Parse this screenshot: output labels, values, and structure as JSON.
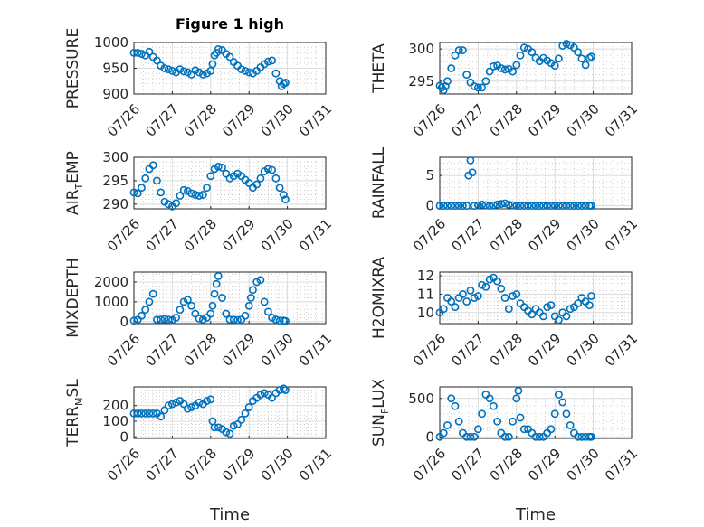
{
  "chart_data": [
    {
      "type": "scatter",
      "title": "Figure 1 high",
      "ylabel": "PRESSURE",
      "ylabel_sub": "",
      "ylim": [
        900,
        1000
      ],
      "yticks": [
        900,
        950,
        1000
      ],
      "ytick_labels": [
        "900",
        "950",
        "1000"
      ],
      "xticks": [
        0,
        1,
        2,
        3,
        4,
        5
      ],
      "xtick_labels": [
        "07/26",
        "07/27",
        "07/28",
        "07/29",
        "07/30",
        "07/31"
      ],
      "xlabel": "",
      "x": [
        0,
        0.1,
        0.2,
        0.3,
        0.4,
        0.5,
        0.6,
        0.7,
        0.8,
        0.9,
        1,
        1.1,
        1.2,
        1.3,
        1.4,
        1.5,
        1.6,
        1.7,
        1.8,
        1.9,
        2,
        2.05,
        2.1,
        2.15,
        2.2,
        2.3,
        2.4,
        2.5,
        2.6,
        2.7,
        2.8,
        2.9,
        3,
        3.1,
        3.2,
        3.3,
        3.4,
        3.5,
        3.6,
        3.7,
        3.8,
        3.85,
        3.9,
        3.95
      ],
      "y": [
        980,
        980,
        978,
        975,
        982,
        972,
        965,
        955,
        950,
        948,
        945,
        942,
        948,
        944,
        942,
        938,
        946,
        942,
        938,
        940,
        945,
        958,
        975,
        980,
        987,
        985,
        978,
        972,
        962,
        955,
        948,
        945,
        942,
        940,
        945,
        952,
        958,
        963,
        965,
        940,
        925,
        915,
        920,
        922
      ]
    },
    {
      "type": "scatter",
      "title": "",
      "ylabel": "THETA",
      "ylabel_sub": "",
      "ylim": [
        293,
        301
      ],
      "yticks": [
        295,
        300
      ],
      "ytick_labels": [
        "295",
        "300"
      ],
      "xticks": [
        0,
        1,
        2,
        3,
        4,
        5
      ],
      "xtick_labels": [
        "07/26",
        "07/27",
        "07/28",
        "07/29",
        "07/30",
        "07/31"
      ],
      "xlabel": "",
      "x": [
        0,
        0.05,
        0.1,
        0.15,
        0.2,
        0.3,
        0.4,
        0.5,
        0.6,
        0.7,
        0.8,
        0.9,
        1,
        1.1,
        1.2,
        1.3,
        1.4,
        1.5,
        1.6,
        1.7,
        1.8,
        1.9,
        2,
        2.1,
        2.2,
        2.3,
        2.4,
        2.5,
        2.6,
        2.7,
        2.8,
        2.9,
        3,
        3.1,
        3.2,
        3.3,
        3.4,
        3.5,
        3.6,
        3.7,
        3.8,
        3.9,
        3.95
      ],
      "y": [
        294.3,
        294,
        293.6,
        294.2,
        295,
        297,
        299,
        299.8,
        299.8,
        296,
        294.8,
        294.2,
        294,
        294,
        295,
        296.5,
        297.3,
        297.4,
        297,
        296.8,
        296.9,
        296.5,
        297.5,
        299,
        300.2,
        300,
        299.5,
        298.6,
        298.1,
        298.6,
        298.2,
        297.8,
        297.4,
        298.5,
        300.5,
        300.8,
        300.6,
        300.2,
        299.5,
        298.5,
        297.5,
        298.6,
        298.8
      ]
    },
    {
      "type": "scatter",
      "title": "",
      "ylabel": "AIR",
      "ylabel_sub": "T",
      "ylabel_tail": "EMP",
      "ylim": [
        289,
        300
      ],
      "yticks": [
        290,
        295,
        300
      ],
      "ytick_labels": [
        "290",
        "295",
        "300"
      ],
      "xticks": [
        0,
        1,
        2,
        3,
        4,
        5
      ],
      "xtick_labels": [
        "07/26",
        "07/27",
        "07/28",
        "07/29",
        "07/30",
        "07/31"
      ],
      "xlabel": "",
      "x": [
        0,
        0.1,
        0.2,
        0.3,
        0.4,
        0.5,
        0.6,
        0.7,
        0.8,
        0.9,
        1,
        1.1,
        1.2,
        1.3,
        1.4,
        1.5,
        1.6,
        1.7,
        1.8,
        1.9,
        2,
        2.1,
        2.2,
        2.3,
        2.4,
        2.5,
        2.6,
        2.7,
        2.8,
        2.9,
        3,
        3.1,
        3.2,
        3.3,
        3.4,
        3.5,
        3.6,
        3.7,
        3.8,
        3.9,
        3.95
      ],
      "y": [
        292.5,
        292.3,
        293.5,
        295.5,
        297.5,
        298.3,
        295,
        292.5,
        290.5,
        290,
        289.5,
        290.2,
        291.8,
        293,
        292.8,
        292.3,
        292,
        291.8,
        292,
        293.5,
        296,
        297.5,
        298,
        297.8,
        296.5,
        295.5,
        296,
        296.5,
        296,
        295.2,
        294.5,
        293.5,
        294.2,
        295.5,
        297,
        297.5,
        297.3,
        295.5,
        293.5,
        292,
        291
      ]
    },
    {
      "type": "scatter",
      "title": "",
      "ylabel": "RAINFALL",
      "ylabel_sub": "",
      "ylim": [
        -0.5,
        8
      ],
      "yticks": [
        0,
        5
      ],
      "ytick_labels": [
        "0",
        "5"
      ],
      "xticks": [
        0,
        1,
        2,
        3,
        4,
        5
      ],
      "xtick_labels": [
        "07/26",
        "07/27",
        "07/28",
        "07/29",
        "07/30",
        "07/31"
      ],
      "xlabel": "",
      "x": [
        0,
        0.1,
        0.2,
        0.3,
        0.4,
        0.5,
        0.6,
        0.7,
        0.75,
        0.8,
        0.85,
        0.9,
        1,
        1.1,
        1.2,
        1.3,
        1.4,
        1.5,
        1.6,
        1.7,
        1.8,
        1.9,
        2,
        2.1,
        2.2,
        2.3,
        2.4,
        2.5,
        2.6,
        2.7,
        2.8,
        2.9,
        3,
        3.1,
        3.2,
        3.3,
        3.4,
        3.5,
        3.6,
        3.7,
        3.8,
        3.9,
        3.95
      ],
      "y": [
        0,
        0,
        0,
        0,
        0,
        0,
        0,
        0,
        5,
        7.5,
        5.5,
        0,
        0.1,
        0.2,
        0.1,
        0,
        0.1,
        0.2,
        0.3,
        0.4,
        0.2,
        0.1,
        0,
        0,
        0,
        0,
        0,
        0,
        0,
        0,
        0,
        0,
        0,
        0,
        0,
        0,
        0,
        0,
        0,
        0,
        0,
        0,
        0
      ]
    },
    {
      "type": "scatter",
      "title": "",
      "ylabel": "MIXDEPTH",
      "ylabel_sub": "",
      "ylim": [
        -100,
        2500
      ],
      "yticks": [
        0,
        1000,
        2000
      ],
      "ytick_labels": [
        "0",
        "1000",
        "2000"
      ],
      "xticks": [
        0,
        1,
        2,
        3,
        4,
        5
      ],
      "xtick_labels": [
        "07/26",
        "07/27",
        "07/28",
        "07/29",
        "07/30",
        "07/31"
      ],
      "xlabel": "",
      "x": [
        0,
        0.1,
        0.2,
        0.3,
        0.4,
        0.5,
        0.6,
        0.7,
        0.8,
        0.9,
        1,
        1.1,
        1.2,
        1.3,
        1.4,
        1.5,
        1.6,
        1.7,
        1.8,
        1.9,
        2,
        2.05,
        2.1,
        2.15,
        2.2,
        2.3,
        2.4,
        2.5,
        2.6,
        2.7,
        2.8,
        2.9,
        3,
        3.05,
        3.1,
        3.2,
        3.3,
        3.4,
        3.5,
        3.6,
        3.7,
        3.8,
        3.9,
        3.95
      ],
      "y": [
        50,
        100,
        300,
        600,
        1000,
        1400,
        100,
        100,
        120,
        100,
        80,
        200,
        600,
        1000,
        1100,
        800,
        400,
        150,
        100,
        200,
        400,
        800,
        1400,
        1900,
        2300,
        1200,
        400,
        100,
        100,
        80,
        100,
        300,
        800,
        1200,
        1600,
        2000,
        2100,
        1000,
        500,
        200,
        100,
        50,
        50,
        30
      ]
    },
    {
      "type": "scatter",
      "title": "",
      "ylabel": "H2OMIXRA",
      "ylabel_sub": "",
      "ylim": [
        9.4,
        12.2
      ],
      "yticks": [
        10,
        11,
        12
      ],
      "ytick_labels": [
        "10",
        "11",
        "12"
      ],
      "xticks": [
        0,
        1,
        2,
        3,
        4,
        5
      ],
      "xtick_labels": [
        "07/26",
        "07/27",
        "07/28",
        "07/29",
        "07/30",
        "07/31"
      ],
      "xlabel": "",
      "x": [
        0,
        0.1,
        0.2,
        0.3,
        0.4,
        0.5,
        0.6,
        0.7,
        0.8,
        0.9,
        1,
        1.1,
        1.2,
        1.3,
        1.4,
        1.5,
        1.6,
        1.7,
        1.8,
        1.9,
        2,
        2.1,
        2.2,
        2.3,
        2.4,
        2.5,
        2.6,
        2.7,
        2.8,
        2.9,
        3,
        3.1,
        3.2,
        3.3,
        3.4,
        3.5,
        3.6,
        3.7,
        3.8,
        3.9,
        3.95
      ],
      "y": [
        10,
        10.2,
        10.8,
        10.6,
        10.3,
        10.8,
        11,
        10.6,
        11.2,
        10.8,
        10.9,
        11.5,
        11.4,
        11.8,
        11.9,
        11.7,
        11.3,
        10.8,
        10.2,
        10.9,
        11,
        10.5,
        10.3,
        10.1,
        9.9,
        10.2,
        10,
        9.8,
        10.3,
        10.4,
        9.8,
        9.6,
        10,
        9.8,
        10.2,
        10.3,
        10.5,
        10.8,
        10.6,
        10.4,
        10.9
      ]
    },
    {
      "type": "scatter",
      "title": "",
      "ylabel": "TERR",
      "ylabel_sub": "M",
      "ylabel_tail": "SL",
      "ylim": [
        -10,
        320
      ],
      "yticks": [
        0,
        100,
        200
      ],
      "ytick_labels": [
        "0",
        "100",
        "200"
      ],
      "xticks": [
        0,
        1,
        2,
        3,
        4,
        5
      ],
      "xtick_labels": [
        "07/26",
        "07/27",
        "07/28",
        "07/29",
        "07/30",
        "07/31"
      ],
      "xlabel": "Time",
      "x": [
        0,
        0.1,
        0.2,
        0.3,
        0.4,
        0.5,
        0.6,
        0.7,
        0.8,
        0.9,
        1,
        1.1,
        1.2,
        1.3,
        1.4,
        1.5,
        1.6,
        1.7,
        1.8,
        1.9,
        2,
        2.05,
        2.1,
        2.2,
        2.3,
        2.4,
        2.5,
        2.6,
        2.7,
        2.8,
        2.9,
        3,
        3.1,
        3.2,
        3.3,
        3.4,
        3.5,
        3.6,
        3.7,
        3.8,
        3.9,
        3.95
      ],
      "y": [
        150,
        150,
        150,
        150,
        150,
        150,
        150,
        130,
        170,
        200,
        210,
        220,
        230,
        210,
        180,
        190,
        200,
        220,
        210,
        230,
        240,
        100,
        60,
        60,
        50,
        30,
        20,
        70,
        80,
        110,
        150,
        190,
        230,
        250,
        270,
        280,
        270,
        250,
        280,
        300,
        310,
        300
      ]
    },
    {
      "type": "scatter",
      "title": "",
      "ylabel": "SUN",
      "ylabel_sub": "F",
      "ylabel_tail": "LUX",
      "ylim": [
        -20,
        650
      ],
      "yticks": [
        0,
        500
      ],
      "ytick_labels": [
        "0",
        "500"
      ],
      "xticks": [
        0,
        1,
        2,
        3,
        4,
        5
      ],
      "xtick_labels": [
        "07/26",
        "07/27",
        "07/28",
        "07/29",
        "07/30",
        "07/31"
      ],
      "xlabel": "Time",
      "x": [
        0,
        0.1,
        0.2,
        0.3,
        0.4,
        0.5,
        0.6,
        0.7,
        0.8,
        0.9,
        1,
        1.1,
        1.2,
        1.3,
        1.4,
        1.5,
        1.6,
        1.7,
        1.8,
        1.9,
        2,
        2.05,
        2.1,
        2.2,
        2.3,
        2.4,
        2.5,
        2.6,
        2.7,
        2.8,
        2.9,
        3,
        3.1,
        3.2,
        3.3,
        3.4,
        3.5,
        3.6,
        3.7,
        3.8,
        3.9,
        3.95
      ],
      "y": [
        0,
        50,
        150,
        500,
        400,
        200,
        50,
        0,
        0,
        0,
        100,
        300,
        550,
        500,
        400,
        200,
        50,
        0,
        0,
        200,
        500,
        600,
        250,
        100,
        100,
        50,
        0,
        0,
        0,
        50,
        100,
        300,
        550,
        450,
        300,
        150,
        50,
        0,
        0,
        0,
        0,
        0
      ]
    }
  ]
}
